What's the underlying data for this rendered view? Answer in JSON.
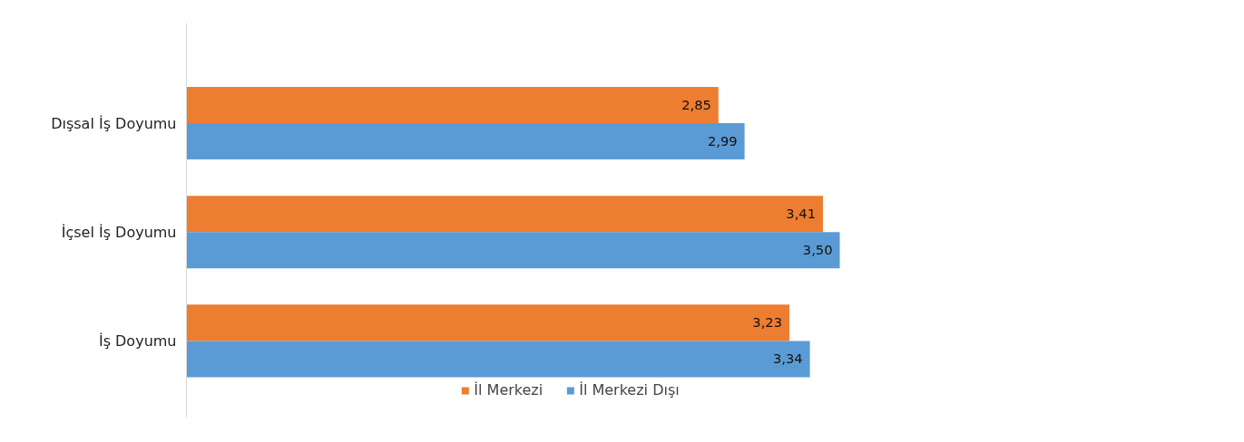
{
  "chart_data": {
    "type": "bar",
    "orientation": "horizontal",
    "categories": [
      "Dışsal İş Doyumu",
      "İçsel İş Doyumu",
      "İş Doyumu"
    ],
    "series": [
      {
        "name": "İl Merkezi",
        "color": "#ed7d31",
        "values": [
          2.85,
          3.41,
          3.23
        ],
        "value_labels": [
          "2,85",
          "3,41",
          "3,23"
        ]
      },
      {
        "name": "İl Merkezi Dışı",
        "color": "#5b9bd5",
        "values": [
          2.99,
          3.5,
          3.34
        ],
        "value_labels": [
          "2,99",
          "3,50",
          "3,34"
        ]
      }
    ],
    "legend": "bottom",
    "tick_labels": "y"
  }
}
